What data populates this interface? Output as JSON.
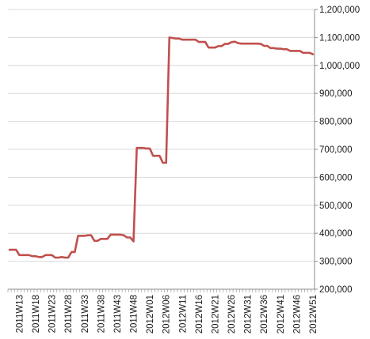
{
  "chart_data": {
    "type": "line",
    "title": "",
    "xlabel": "",
    "ylabel": "",
    "ylim": [
      200000,
      1200000
    ],
    "y_axis_side": "right",
    "grid": "horizontal",
    "legend": "none",
    "y_ticks": [
      200000,
      300000,
      400000,
      500000,
      600000,
      700000,
      800000,
      900000,
      1000000,
      1100000,
      1200000
    ],
    "y_tick_labels": [
      "200,000",
      "300,000",
      "400,000",
      "500,000",
      "600,000",
      "700,000",
      "800,000",
      "900,000",
      "1,000,000",
      "1,100,000",
      "1,200,000"
    ],
    "x_tick_labels": [
      "2011W13",
      "2011W18",
      "2011W23",
      "2011W28",
      "2011W33",
      "2011W38",
      "2011W43",
      "2011W48",
      "2012W01",
      "2012W06",
      "2012W11",
      "2012W16",
      "2012W21",
      "2012W26",
      "2012W31",
      "2012W36",
      "2012W41",
      "2012W46",
      "2012W51"
    ],
    "categories": [
      "2011W10",
      "2011W11",
      "2011W12",
      "2011W13",
      "2011W14",
      "2011W15",
      "2011W16",
      "2011W17",
      "2011W18",
      "2011W19",
      "2011W20",
      "2011W21",
      "2011W22",
      "2011W23",
      "2011W24",
      "2011W25",
      "2011W26",
      "2011W27",
      "2011W28",
      "2011W29",
      "2011W30",
      "2011W31",
      "2011W32",
      "2011W33",
      "2011W34",
      "2011W35",
      "2011W36",
      "2011W37",
      "2011W38",
      "2011W39",
      "2011W40",
      "2011W41",
      "2011W42",
      "2011W43",
      "2011W44",
      "2011W45",
      "2011W46",
      "2011W47",
      "2011W48",
      "2011W49",
      "2011W50",
      "2011W51",
      "2011W52",
      "2012W01",
      "2012W02",
      "2012W03",
      "2012W04",
      "2012W05",
      "2012W06",
      "2012W07",
      "2012W08",
      "2012W09",
      "2012W10",
      "2012W11",
      "2012W12",
      "2012W13",
      "2012W14",
      "2012W15",
      "2012W16",
      "2012W17",
      "2012W18",
      "2012W19",
      "2012W20",
      "2012W21",
      "2012W22",
      "2012W23",
      "2012W24",
      "2012W25",
      "2012W26",
      "2012W27",
      "2012W28",
      "2012W29",
      "2012W30",
      "2012W31",
      "2012W32",
      "2012W33",
      "2012W34",
      "2012W35",
      "2012W36",
      "2012W37",
      "2012W38",
      "2012W39",
      "2012W40",
      "2012W41",
      "2012W42",
      "2012W43",
      "2012W44",
      "2012W45",
      "2012W46",
      "2012W47",
      "2012W48",
      "2012W49",
      "2012W50",
      "2012W51"
    ],
    "series": [
      {
        "color": "#c0504d",
        "values": [
          341000,
          341000,
          341000,
          322000,
          322000,
          322000,
          322000,
          318000,
          318000,
          315000,
          315000,
          322000,
          322000,
          322000,
          313000,
          313000,
          315000,
          313000,
          313000,
          333000,
          333000,
          391000,
          391000,
          391000,
          393000,
          393000,
          373000,
          373000,
          380000,
          380000,
          380000,
          395000,
          395000,
          395000,
          395000,
          393000,
          385000,
          385000,
          371000,
          705000,
          705000,
          705000,
          703000,
          703000,
          677000,
          677000,
          677000,
          652000,
          652000,
          1100000,
          1098000,
          1096000,
          1096000,
          1092000,
          1092000,
          1092000,
          1092000,
          1092000,
          1084000,
          1084000,
          1084000,
          1064000,
          1064000,
          1064000,
          1069000,
          1069000,
          1077000,
          1077000,
          1083000,
          1085000,
          1080000,
          1078000,
          1078000,
          1078000,
          1078000,
          1078000,
          1078000,
          1077000,
          1070000,
          1070000,
          1062000,
          1062000,
          1060000,
          1060000,
          1058000,
          1058000,
          1052000,
          1052000,
          1052000,
          1052000,
          1045000,
          1045000,
          1045000,
          1040000
        ]
      }
    ]
  }
}
